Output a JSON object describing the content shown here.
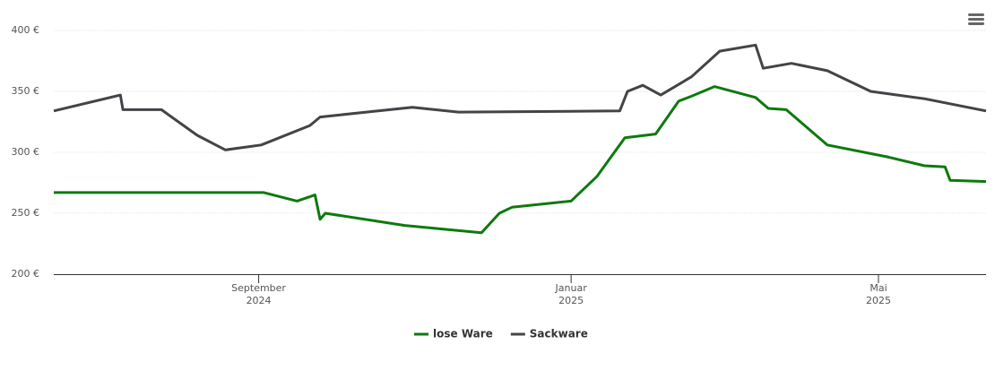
{
  "chart_data": {
    "type": "line",
    "xlim": [
      "2024-06-13",
      "2025-06-12"
    ],
    "xticks": [
      {
        "value": "2024-09-01",
        "label": [
          "September",
          "2024"
        ]
      },
      {
        "value": "2025-01-01",
        "label": [
          "Januar",
          "2025"
        ]
      },
      {
        "value": "2025-05-01",
        "label": [
          "Mai",
          "2025"
        ]
      }
    ],
    "ylim": [
      200,
      400
    ],
    "yticks": [
      {
        "value": 200,
        "label": "200 €"
      },
      {
        "value": 250,
        "label": "250 €"
      },
      {
        "value": 300,
        "label": "300 €"
      },
      {
        "value": 350,
        "label": "350 €"
      },
      {
        "value": 400,
        "label": "400 €"
      }
    ],
    "grid": true,
    "legend": "bottom",
    "series": [
      {
        "name": "lose Ware",
        "color": "#0d7a0d",
        "x": [
          "2024-06-13",
          "2024-09-03",
          "2024-09-16",
          "2024-09-23",
          "2024-09-25",
          "2024-09-27",
          "2024-10-28",
          "2024-11-27",
          "2024-12-04",
          "2024-12-09",
          "2025-01-01",
          "2025-01-04",
          "2025-01-11",
          "2025-01-22",
          "2025-02-03",
          "2025-02-12",
          "2025-02-17",
          "2025-02-26",
          "2025-03-14",
          "2025-03-19",
          "2025-03-26",
          "2025-04-11",
          "2025-05-05",
          "2025-05-19",
          "2025-05-27",
          "2025-05-29",
          "2025-06-12"
        ],
        "values": [
          267,
          267,
          260,
          265,
          245,
          250,
          240,
          234,
          250,
          255,
          260,
          266,
          280,
          312,
          315,
          342,
          346,
          354,
          345,
          336,
          335,
          306,
          296,
          289,
          288,
          277,
          276
        ]
      },
      {
        "name": "Sackware",
        "color": "#434348",
        "x": [
          "2024-06-13",
          "2024-07-09",
          "2024-07-10",
          "2024-07-25",
          "2024-08-08",
          "2024-08-19",
          "2024-09-02",
          "2024-09-21",
          "2024-09-25",
          "2024-10-31",
          "2024-11-18",
          "2025-01-20",
          "2025-01-23",
          "2025-01-29",
          "2025-02-05",
          "2025-02-17",
          "2025-02-28",
          "2025-03-14",
          "2025-03-17",
          "2025-03-28",
          "2025-04-11",
          "2025-04-28",
          "2025-05-19",
          "2025-06-12"
        ],
        "values": [
          334,
          347,
          335,
          335,
          314,
          302,
          306,
          322,
          329,
          337,
          333,
          334,
          350,
          355,
          347,
          362,
          383,
          388,
          369,
          373,
          367,
          350,
          344,
          334
        ]
      }
    ]
  }
}
